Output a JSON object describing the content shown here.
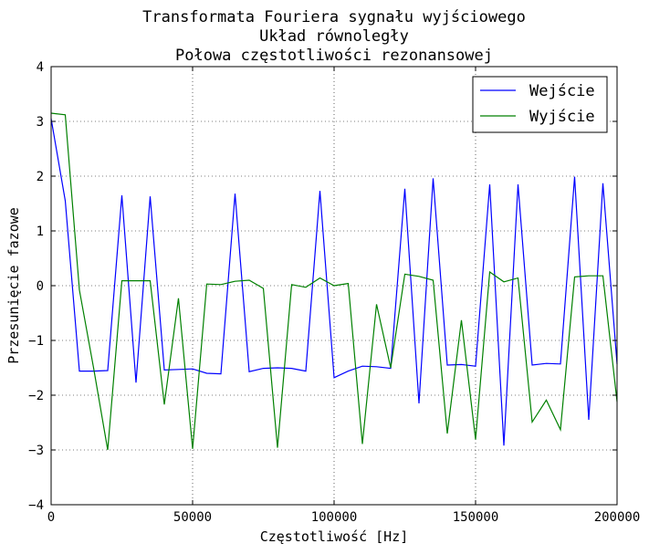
{
  "chart_data": {
    "type": "line",
    "title_lines": [
      "Transformata Fouriera sygnału wyjściowego",
      "Układ równoległy",
      "Połowa częstotliwości rezonansowej"
    ],
    "xlabel": "Częstotliwość [Hz]",
    "ylabel": "Przesunięcie fazowe",
    "xlim": [
      0,
      200000
    ],
    "ylim": [
      -4,
      4
    ],
    "xticks": [
      0,
      50000,
      100000,
      150000,
      200000
    ],
    "xtick_labels": [
      "0",
      "50000",
      "100000",
      "150000",
      "200000"
    ],
    "yticks": [
      -4,
      -3,
      -2,
      -1,
      0,
      1,
      2,
      3,
      4
    ],
    "ytick_labels": [
      "−4",
      "−3",
      "−2",
      "−1",
      "0",
      "1",
      "2",
      "3",
      "4"
    ],
    "grid": true,
    "legend_position": "top-right",
    "x": [
      0,
      5000,
      10000,
      15000,
      20000,
      25000,
      30000,
      35000,
      40000,
      45000,
      50000,
      55000,
      60000,
      65000,
      70000,
      75000,
      80000,
      85000,
      90000,
      95000,
      100000,
      105000,
      110000,
      115000,
      120000,
      125000,
      130000,
      135000,
      140000,
      145000,
      150000,
      155000,
      160000,
      165000,
      170000,
      175000,
      180000,
      185000,
      190000,
      195000,
      200000
    ],
    "series": [
      {
        "name": "Wejście",
        "color": "#0000ff",
        "values": [
          3.05,
          1.55,
          -1.56,
          -1.56,
          -1.55,
          1.65,
          -1.77,
          1.63,
          -1.54,
          -1.53,
          -1.52,
          -1.6,
          -1.61,
          1.68,
          -1.57,
          -1.51,
          -1.5,
          -1.51,
          -1.56,
          1.73,
          -1.68,
          -1.56,
          -1.47,
          -1.48,
          -1.51,
          1.77,
          -2.15,
          1.96,
          -1.45,
          -1.44,
          -1.47,
          1.85,
          -2.92,
          1.85,
          -1.45,
          -1.42,
          -1.43,
          1.99,
          -2.45,
          1.87,
          -1.43
        ]
      },
      {
        "name": "Wyjście",
        "color": "#008000",
        "values": [
          3.15,
          3.12,
          -0.08,
          -1.5,
          -3.0,
          0.09,
          0.09,
          0.09,
          -2.17,
          -0.23,
          -2.98,
          0.03,
          0.02,
          0.08,
          0.1,
          -0.05,
          -2.96,
          0.02,
          -0.03,
          0.14,
          0.0,
          0.04,
          -2.89,
          -0.34,
          -1.5,
          0.21,
          0.17,
          0.1,
          -2.7,
          -0.63,
          -2.81,
          0.25,
          0.07,
          0.14,
          -2.49,
          -2.09,
          -2.63,
          0.16,
          0.18,
          0.18,
          -2.12
        ]
      }
    ]
  }
}
